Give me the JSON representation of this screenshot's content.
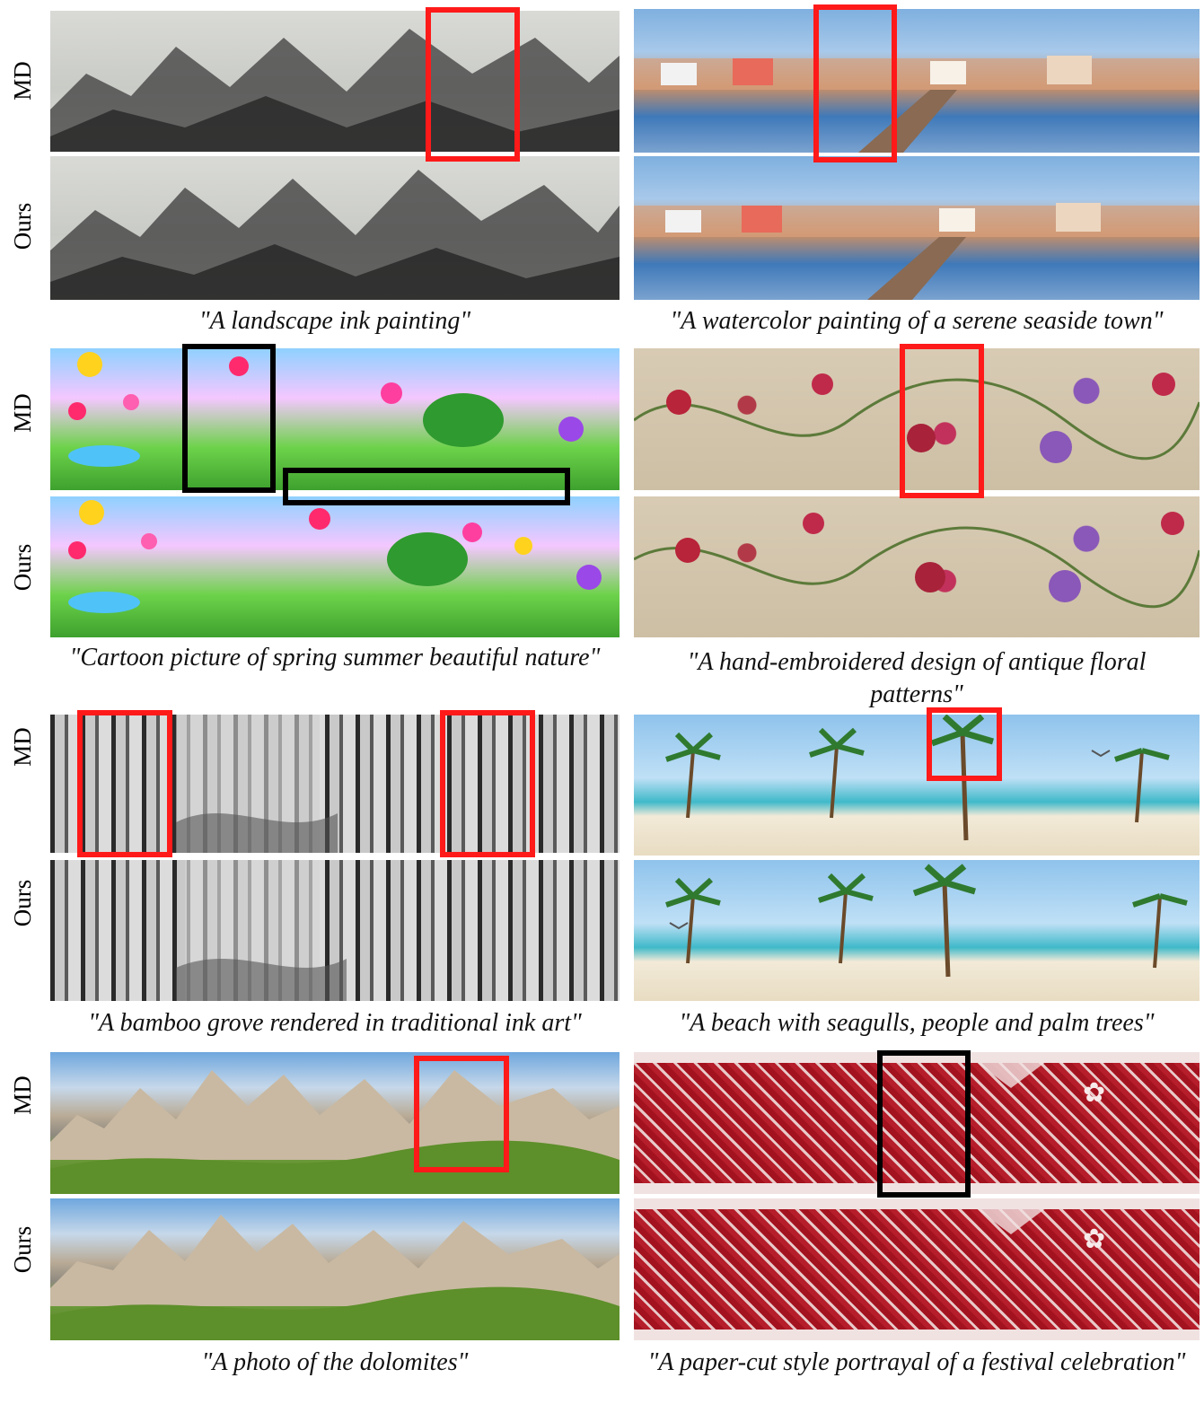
{
  "labels": {
    "md": "MD",
    "ours": "Ours"
  },
  "captions": {
    "landscape": "\"A landscape ink painting\"",
    "seaside": "\"A watercolor painting of a serene seaside town\"",
    "cartoon": "\"Cartoon picture of spring summer beautiful nature\"",
    "embroidery": "\"A hand-embroidered design of antique floral patterns\"",
    "bamboo": "\"A bamboo grove rendered in traditional ink art\"",
    "beach": "\"A beach with seagulls, people and palm trees\"",
    "dolomites": "\"A photo of the dolomites\"",
    "papercut": "\"A paper-cut style portrayal of a festival celebration\""
  },
  "highlight_colors": {
    "red": "#ff1a1a",
    "black": "#000000"
  }
}
